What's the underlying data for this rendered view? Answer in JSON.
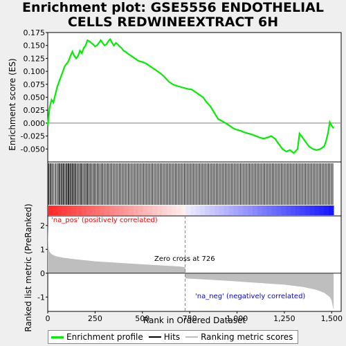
{
  "title_lines": [
    "Enrichment plot: GSE5556 ENDOTHELIAL",
    "CELLS REDWINEEXTRACT 6H"
  ],
  "colors": {
    "enrichment": "#00ee00",
    "hits": "#000000",
    "metric": "#bebebe",
    "pos": "#ff0000",
    "neg": "#0000ff",
    "zero_line": "#808080"
  },
  "chart_data": [
    {
      "type": "line",
      "panel": "enrichment",
      "ylabel": "Enrichment score (ES)",
      "xlim": [
        0,
        1550
      ],
      "ylim": [
        -0.075,
        0.175
      ],
      "yticks": [
        "0.175",
        "0.150",
        "0.125",
        "0.100",
        "0.075",
        "0.050",
        "0.025",
        "0.000",
        "-0.025",
        "-0.050"
      ],
      "ytick_values": [
        0.175,
        0.15,
        0.125,
        0.1,
        0.075,
        0.05,
        0.025,
        0.0,
        -0.025,
        -0.05
      ],
      "series": [
        {
          "name": "Enrichment profile",
          "x": [
            0,
            10,
            20,
            30,
            40,
            50,
            60,
            70,
            80,
            90,
            100,
            110,
            120,
            130,
            140,
            150,
            160,
            170,
            180,
            190,
            200,
            210,
            220,
            230,
            240,
            250,
            260,
            270,
            280,
            290,
            300,
            310,
            320,
            330,
            340,
            350,
            360,
            370,
            380,
            390,
            400,
            410,
            420,
            440,
            460,
            480,
            500,
            520,
            540,
            560,
            580,
            600,
            620,
            640,
            660,
            680,
            700,
            720,
            740,
            760,
            780,
            800,
            820,
            840,
            860,
            880,
            900,
            920,
            940,
            960,
            980,
            1000,
            1020,
            1040,
            1060,
            1080,
            1100,
            1120,
            1140,
            1160,
            1180,
            1200,
            1220,
            1240,
            1260,
            1280,
            1300,
            1320,
            1330,
            1340,
            1360,
            1380,
            1400,
            1420,
            1440,
            1460,
            1470,
            1480,
            1490,
            1500,
            1510
          ],
          "y": [
            -0.005,
            0.03,
            0.045,
            0.04,
            0.055,
            0.07,
            0.08,
            0.09,
            0.1,
            0.11,
            0.115,
            0.12,
            0.13,
            0.138,
            0.13,
            0.125,
            0.13,
            0.14,
            0.135,
            0.145,
            0.15,
            0.16,
            0.158,
            0.155,
            0.152,
            0.148,
            0.15,
            0.155,
            0.16,
            0.155,
            0.15,
            0.152,
            0.158,
            0.162,
            0.155,
            0.15,
            0.155,
            0.152,
            0.148,
            0.145,
            0.14,
            0.138,
            0.135,
            0.13,
            0.125,
            0.12,
            0.118,
            0.115,
            0.11,
            0.105,
            0.1,
            0.095,
            0.088,
            0.08,
            0.075,
            0.072,
            0.07,
            0.068,
            0.066,
            0.065,
            0.06,
            0.055,
            0.05,
            0.04,
            0.032,
            0.02,
            0.008,
            0.004,
            0.0,
            -0.005,
            -0.01,
            -0.013,
            -0.015,
            -0.018,
            -0.02,
            -0.022,
            -0.025,
            -0.028,
            -0.03,
            -0.028,
            -0.025,
            -0.03,
            -0.04,
            -0.05,
            -0.055,
            -0.052,
            -0.058,
            -0.05,
            -0.02,
            -0.025,
            -0.035,
            -0.045,
            -0.05,
            -0.052,
            -0.05,
            -0.045,
            -0.035,
            -0.02,
            0.002,
            -0.005,
            -0.01
          ]
        }
      ]
    },
    {
      "type": "hits",
      "panel": "hits",
      "positions": [
        5,
        12,
        18,
        25,
        33,
        42,
        50,
        58,
        63,
        70,
        76,
        82,
        88,
        95,
        101,
        107,
        112,
        118,
        124,
        130,
        136,
        142,
        148,
        155,
        162,
        170,
        176,
        182,
        190,
        197,
        204,
        210,
        217,
        224,
        231,
        239,
        246,
        253,
        261,
        268,
        276,
        284,
        291,
        299,
        307,
        315,
        322,
        330,
        338,
        346,
        354,
        362,
        370,
        378,
        386,
        394,
        402,
        410,
        418,
        426,
        434,
        442,
        450,
        458,
        466,
        474,
        482,
        490,
        498,
        506,
        514,
        522,
        530,
        538,
        546,
        554,
        562,
        570,
        578,
        586,
        594,
        602,
        610,
        618,
        626,
        634,
        642,
        650,
        658,
        666,
        674,
        682,
        690,
        698,
        706,
        714,
        722,
        730,
        738,
        746,
        754,
        762,
        770,
        778,
        786,
        794,
        802,
        810,
        818,
        826,
        834,
        842,
        850,
        858,
        866,
        874,
        882,
        890,
        898,
        906,
        914,
        922,
        930,
        938,
        946,
        954,
        962,
        970,
        978,
        986,
        994,
        1002,
        1010,
        1018,
        1026,
        1034,
        1042,
        1050,
        1058,
        1066,
        1074,
        1082,
        1090,
        1098,
        1106,
        1114,
        1122,
        1130,
        1138,
        1146,
        1154,
        1162,
        1170,
        1178,
        1186,
        1194,
        1202,
        1210,
        1218,
        1226,
        1234,
        1242,
        1250,
        1258,
        1266,
        1274,
        1282,
        1290,
        1298,
        1306,
        1314,
        1322,
        1330,
        1338,
        1346,
        1354,
        1362,
        1370,
        1378,
        1386,
        1394,
        1402,
        1410,
        1418,
        1426,
        1434,
        1442,
        1450,
        1458,
        1466,
        1474,
        1482,
        1490,
        1498,
        1506
      ]
    },
    {
      "type": "area",
      "panel": "ranked-metric",
      "ylabel": "Ranked list metric (PreRanked)",
      "xlabel": "Rank in Ordered Dataset",
      "xlim": [
        0,
        1550
      ],
      "ylim": [
        -1.6,
        2.4
      ],
      "yticks": [
        "2",
        "1",
        "0",
        "-1"
      ],
      "ytick_values": [
        2,
        1,
        0,
        -1
      ],
      "xticks": [
        "0",
        "250",
        "500",
        "750",
        "1,000",
        "1,250",
        "1,500"
      ],
      "xtick_values": [
        0,
        250,
        500,
        750,
        1000,
        1250,
        1500
      ],
      "zero_cross": 726,
      "zero_cross_label": "Zero cross at 726",
      "pos_label": "'na_pos' (positively correlated)",
      "neg_label": "'na_neg' (negatively correlated)",
      "series": [
        {
          "name": "Ranking metric scores",
          "x": [
            0,
            2,
            5,
            10,
            20,
            40,
            80,
            150,
            250,
            400,
            550,
            700,
            726,
            727,
            800,
            950,
            1100,
            1250,
            1350,
            1420,
            1460,
            1490,
            1500,
            1505,
            1510
          ],
          "y": [
            2.1,
            1.4,
            1.0,
            0.88,
            0.8,
            0.72,
            0.65,
            0.58,
            0.5,
            0.42,
            0.35,
            0.28,
            0.25,
            -0.22,
            -0.25,
            -0.32,
            -0.4,
            -0.48,
            -0.58,
            -0.7,
            -0.82,
            -1.0,
            -1.15,
            -1.35,
            -1.55
          ]
        }
      ]
    }
  ],
  "legend": [
    {
      "label": "Enrichment profile",
      "kind": "enrichment"
    },
    {
      "label": "Hits",
      "kind": "hits"
    },
    {
      "label": "Ranking metric scores",
      "kind": "metric"
    }
  ]
}
